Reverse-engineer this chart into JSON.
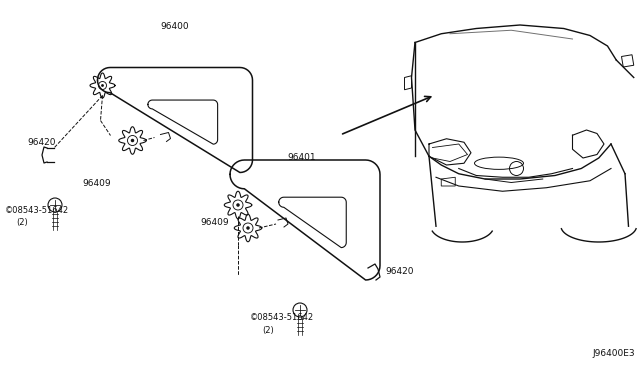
{
  "bg_color": "#ffffff",
  "diagram_id": "J96400E3",
  "line_color": "#111111",
  "text_color": "#111111",
  "font_size": 6.5,
  "fig_w": 6.4,
  "fig_h": 3.72,
  "dpi": 100
}
